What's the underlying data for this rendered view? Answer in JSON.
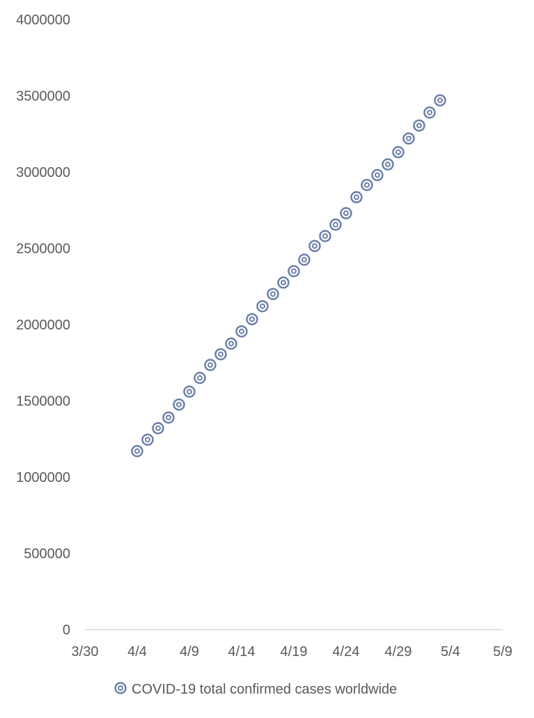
{
  "chart_data": {
    "type": "scatter",
    "title": "",
    "xlabel": "",
    "ylabel": "",
    "x_axis": {
      "type": "date",
      "min": "2020-03-30",
      "max": "2020-05-09",
      "major_unit_days": 5,
      "tick_labels": [
        "3/30",
        "4/4",
        "4/9",
        "4/14",
        "4/19",
        "4/24",
        "4/29",
        "5/4",
        "5/9"
      ]
    },
    "y_axis": {
      "min": 0,
      "max": 4000000,
      "major_unit": 500000,
      "tick_labels": [
        "0",
        "500000",
        "1000000",
        "1500000",
        "2000000",
        "2500000",
        "3000000",
        "3500000",
        "4000000"
      ]
    },
    "grid": false,
    "legend_position": "bottom",
    "series": [
      {
        "name": "COVID-19 total confirmed cases worldwide",
        "color": "#6b7fa8",
        "marker": "double-circle",
        "points": [
          {
            "x": "2020-04-04",
            "y": 1170000
          },
          {
            "x": "2020-04-05",
            "y": 1245000
          },
          {
            "x": "2020-04-06",
            "y": 1320000
          },
          {
            "x": "2020-04-07",
            "y": 1390000
          },
          {
            "x": "2020-04-08",
            "y": 1475000
          },
          {
            "x": "2020-04-09",
            "y": 1560000
          },
          {
            "x": "2020-04-10",
            "y": 1650000
          },
          {
            "x": "2020-04-11",
            "y": 1735000
          },
          {
            "x": "2020-04-12",
            "y": 1805000
          },
          {
            "x": "2020-04-13",
            "y": 1875000
          },
          {
            "x": "2020-04-14",
            "y": 1955000
          },
          {
            "x": "2020-04-15",
            "y": 2035000
          },
          {
            "x": "2020-04-16",
            "y": 2120000
          },
          {
            "x": "2020-04-17",
            "y": 2200000
          },
          {
            "x": "2020-04-18",
            "y": 2275000
          },
          {
            "x": "2020-04-19",
            "y": 2350000
          },
          {
            "x": "2020-04-20",
            "y": 2425000
          },
          {
            "x": "2020-04-21",
            "y": 2515000
          },
          {
            "x": "2020-04-22",
            "y": 2580000
          },
          {
            "x": "2020-04-23",
            "y": 2655000
          },
          {
            "x": "2020-04-24",
            "y": 2730000
          },
          {
            "x": "2020-04-25",
            "y": 2835000
          },
          {
            "x": "2020-04-26",
            "y": 2915000
          },
          {
            "x": "2020-04-27",
            "y": 2980000
          },
          {
            "x": "2020-04-28",
            "y": 3050000
          },
          {
            "x": "2020-04-29",
            "y": 3130000
          },
          {
            "x": "2020-04-30",
            "y": 3220000
          },
          {
            "x": "2020-05-01",
            "y": 3305000
          },
          {
            "x": "2020-05-02",
            "y": 3390000
          },
          {
            "x": "2020-05-03",
            "y": 3470000
          }
        ]
      }
    ]
  }
}
